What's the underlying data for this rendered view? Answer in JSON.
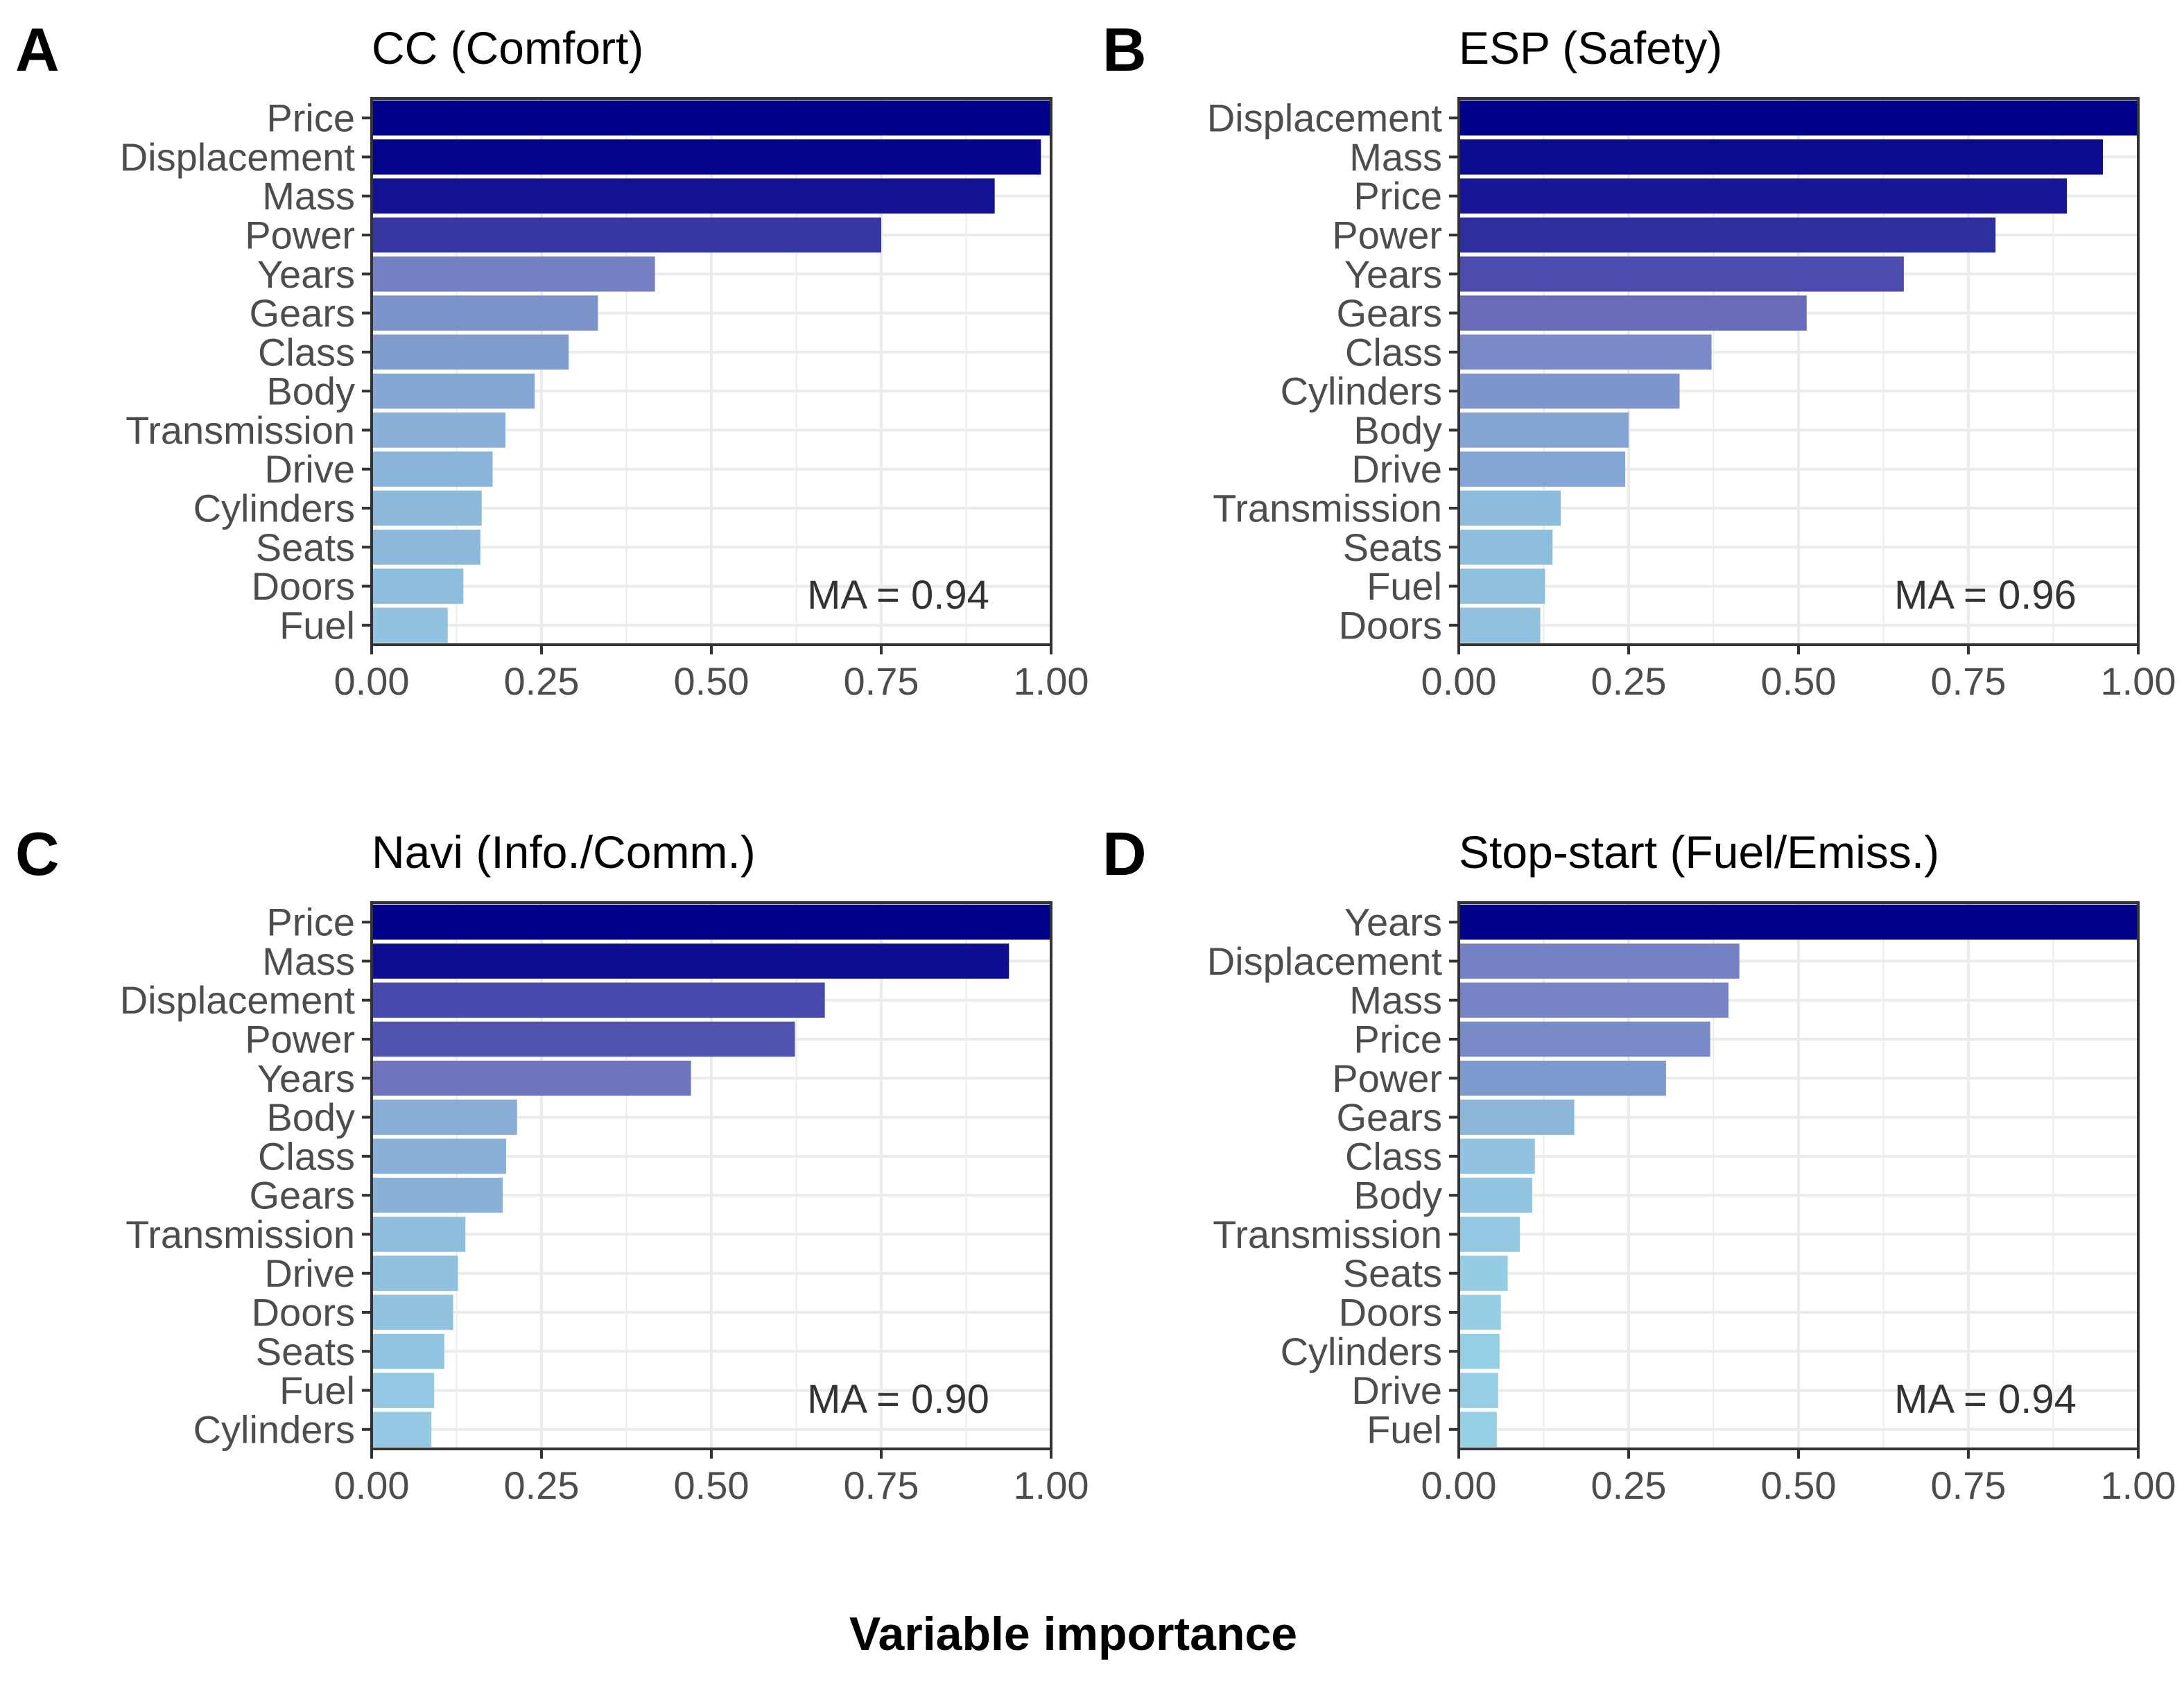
{
  "xlabel": "Variable importance",
  "colors": {
    "dark": "#00008b",
    "light": "#9bdcea",
    "grid": "#ebebeb",
    "axis": "#333333"
  },
  "chart_data": [
    {
      "type": "bar",
      "orientation": "horizontal",
      "letter": "A",
      "title": "CC (Comfort)",
      "annotation": "MA = 0.94",
      "xlim": [
        0,
        1
      ],
      "xticks": [
        "0.00",
        "0.25",
        "0.50",
        "0.75",
        "1.00"
      ],
      "categories": [
        "Price",
        "Displacement",
        "Mass",
        "Power",
        "Years",
        "Gears",
        "Class",
        "Body",
        "Transmission",
        "Drive",
        "Cylinders",
        "Seats",
        "Doors",
        "Fuel"
      ],
      "values": [
        1.0,
        0.985,
        0.917,
        0.75,
        0.417,
        0.333,
        0.29,
        0.24,
        0.197,
        0.178,
        0.162,
        0.16,
        0.135,
        0.112
      ]
    },
    {
      "type": "bar",
      "orientation": "horizontal",
      "letter": "B",
      "title": "ESP (Safety)",
      "annotation": "MA = 0.96",
      "xlim": [
        0,
        1
      ],
      "xticks": [
        "0.00",
        "0.25",
        "0.50",
        "0.75",
        "1.00"
      ],
      "categories": [
        "Displacement",
        "Mass",
        "Price",
        "Power",
        "Years",
        "Gears",
        "Class",
        "Cylinders",
        "Body",
        "Drive",
        "Transmission",
        "Seats",
        "Fuel",
        "Doors"
      ],
      "values": [
        1.0,
        0.948,
        0.895,
        0.79,
        0.655,
        0.512,
        0.372,
        0.325,
        0.25,
        0.245,
        0.15,
        0.138,
        0.127,
        0.12
      ]
    },
    {
      "type": "bar",
      "orientation": "horizontal",
      "letter": "C",
      "title": "Navi (Info./Comm.)",
      "annotation": "MA = 0.90",
      "xlim": [
        0,
        1
      ],
      "xticks": [
        "0.00",
        "0.25",
        "0.50",
        "0.75",
        "1.00"
      ],
      "categories": [
        "Price",
        "Mass",
        "Displacement",
        "Power",
        "Years",
        "Body",
        "Class",
        "Gears",
        "Transmission",
        "Drive",
        "Doors",
        "Seats",
        "Fuel",
        "Cylinders"
      ],
      "values": [
        1.0,
        0.938,
        0.667,
        0.623,
        0.47,
        0.214,
        0.198,
        0.193,
        0.138,
        0.127,
        0.12,
        0.107,
        0.092,
        0.088
      ]
    },
    {
      "type": "bar",
      "orientation": "horizontal",
      "letter": "D",
      "title": "Stop-start (Fuel/Emiss.)",
      "annotation": "MA = 0.94",
      "xlim": [
        0,
        1
      ],
      "xticks": [
        "0.00",
        "0.25",
        "0.50",
        "0.75",
        "1.00"
      ],
      "categories": [
        "Years",
        "Displacement",
        "Mass",
        "Price",
        "Power",
        "Gears",
        "Class",
        "Body",
        "Transmission",
        "Seats",
        "Doors",
        "Cylinders",
        "Drive",
        "Fuel"
      ],
      "values": [
        1.0,
        0.413,
        0.397,
        0.37,
        0.305,
        0.17,
        0.112,
        0.108,
        0.09,
        0.072,
        0.062,
        0.06,
        0.058,
        0.056
      ]
    }
  ]
}
